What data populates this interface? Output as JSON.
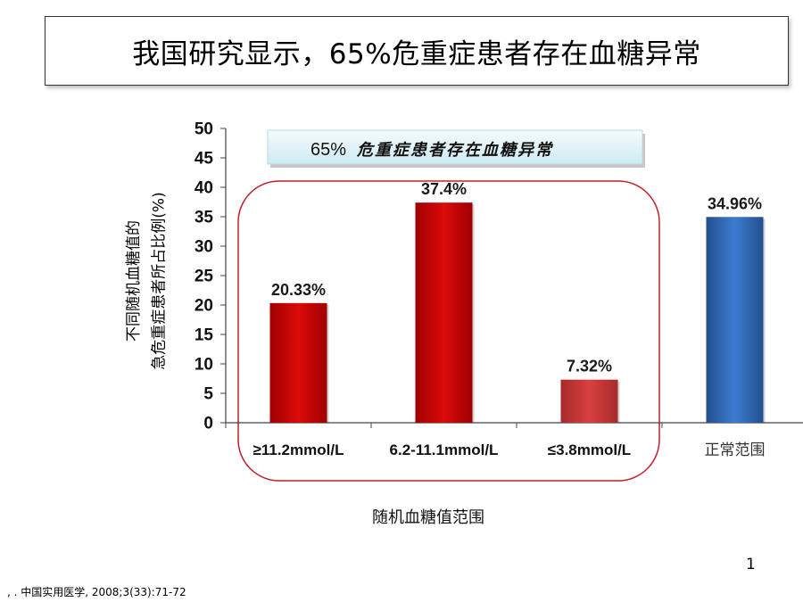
{
  "slide": {
    "title": "我国研究显示，65%危重症患者存在血糖异常",
    "page_number": "1",
    "citation": ", . 中国实用医学, 2008;3(33):71-72"
  },
  "chart_data": {
    "type": "bar",
    "categories": [
      "≥11.2mmol/L",
      "6.2-11.1mmol/L",
      "≤3.8mmol/L",
      "正常范围"
    ],
    "values": [
      20.33,
      37.4,
      7.32,
      34.96
    ],
    "data_labels": [
      "20.33%",
      "37.4%",
      "7.32%",
      "34.96%"
    ],
    "bar_colors": [
      "#c80000",
      "#c80000",
      "#c83232",
      "#2e62b0"
    ],
    "title": "",
    "xlabel": "随机血糖值范围",
    "ylabel_lines": [
      "不同随机血糖值的",
      "急危重症患者所占比例(%)"
    ],
    "ylim": [
      0,
      50
    ],
    "yticks": [
      0,
      5,
      10,
      15,
      20,
      25,
      30,
      35,
      40,
      45,
      50
    ],
    "grid": false,
    "annotation": {
      "prefix": "65%",
      "text": "危重症患者存在血糖异常"
    },
    "highlight_group": [
      "≥11.2mmol/L",
      "6.2-11.1mmol/L",
      "≤3.8mmol/L"
    ],
    "highlight_color": "#c0202a"
  }
}
